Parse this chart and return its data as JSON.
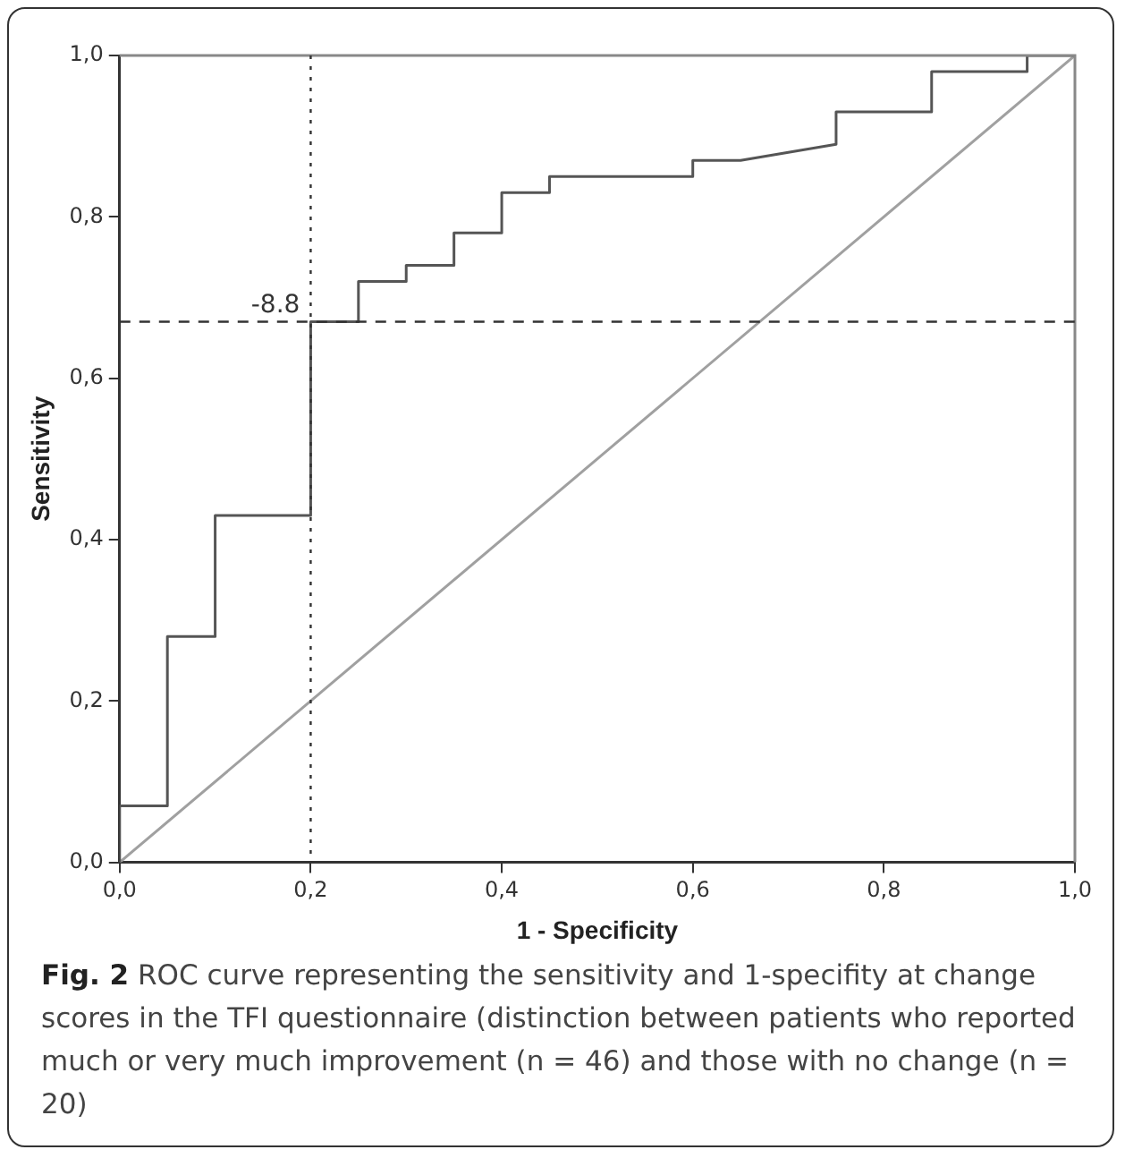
{
  "chart_data": {
    "type": "line",
    "xlabel": "1 - Specificity",
    "ylabel": "Sensitivity",
    "xlim": [
      0,
      1
    ],
    "ylim": [
      0,
      1
    ],
    "xticks": [
      {
        "value": 0,
        "label": "0,0"
      },
      {
        "value": 0.2,
        "label": "0,2"
      },
      {
        "value": 0.4,
        "label": "0,4"
      },
      {
        "value": 0.6,
        "label": "0,6"
      },
      {
        "value": 0.8,
        "label": "0,8"
      },
      {
        "value": 1,
        "label": "1,0"
      }
    ],
    "yticks": [
      {
        "value": 0,
        "label": "0,0"
      },
      {
        "value": 0.2,
        "label": "0,2"
      },
      {
        "value": 0.4,
        "label": "0,4"
      },
      {
        "value": 0.6,
        "label": "0,6"
      },
      {
        "value": 0.8,
        "label": "0,8"
      },
      {
        "value": 1,
        "label": "1,0"
      }
    ],
    "grid": false,
    "legend": false,
    "marker": "none",
    "series": [
      {
        "color": "#555555",
        "x": [
          0,
          0,
          0.05,
          0.05,
          0.1,
          0.1,
          0.2,
          0.2,
          0.25,
          0.25,
          0.3,
          0.3,
          0.35,
          0.35,
          0.4,
          0.4,
          0.45,
          0.45,
          0.6,
          0.6,
          0.65,
          0.75,
          0.75,
          0.85,
          0.85,
          0.95,
          0.95,
          1
        ],
        "values": [
          0,
          0.07,
          0.07,
          0.28,
          0.28,
          0.43,
          0.43,
          0.67,
          0.67,
          0.72,
          0.72,
          0.74,
          0.74,
          0.78,
          0.78,
          0.83,
          0.83,
          0.85,
          0.85,
          0.87,
          0.87,
          0.89,
          0.93,
          0.93,
          0.98,
          0.98,
          1,
          1
        ]
      },
      {
        "color": "#a0a0a0",
        "x": [
          0,
          1
        ],
        "values": [
          0,
          1
        ]
      }
    ],
    "ref_lines": [
      {
        "axis": "y",
        "value": 0.67,
        "line_style": "dashed",
        "color": "#333333"
      },
      {
        "axis": "x",
        "value": 0.2,
        "line_style": "dotted",
        "color": "#333333"
      }
    ],
    "annotations": [
      {
        "text": "-8.8",
        "x": 0.2,
        "y": 0.67
      },
      "Fig. 2",
      "ROC curve representing the sensitivity and 1-specifity at change scores in the TFI questionnaire (distinction between patients who reported much or very much improvement (n = 46) and those with no change (n = 20)"
    ]
  }
}
